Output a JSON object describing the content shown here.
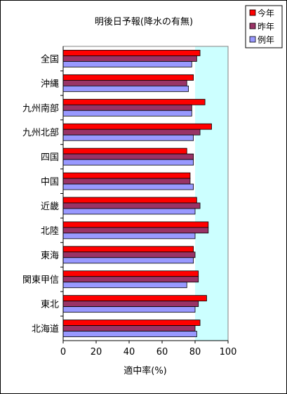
{
  "chart_data": {
    "type": "bar",
    "orientation": "horizontal",
    "title": "明後日予報(降水の有無)",
    "xlabel": "適中率(%)",
    "ylabel": "",
    "xlim": [
      0,
      100
    ],
    "xticks": [
      0,
      20,
      40,
      60,
      80,
      100
    ],
    "grid": false,
    "legend_position": "top-right",
    "categories": [
      "全国",
      "沖縄",
      "九州南部",
      "九州北部",
      "四国",
      "中国",
      "近畿",
      "北陸",
      "東海",
      "関東甲信",
      "東北",
      "北海道"
    ],
    "series": [
      {
        "name": "今年",
        "color": "#ff0000",
        "values": [
          83,
          79,
          86,
          90,
          75,
          77,
          81,
          88,
          79,
          82,
          87,
          83
        ]
      },
      {
        "name": "昨年",
        "color": "#993366",
        "values": [
          81,
          75,
          78,
          83,
          79,
          77,
          83,
          88,
          80,
          82,
          82,
          80
        ]
      },
      {
        "name": "例年",
        "color": "#9999ff",
        "values": [
          78,
          76,
          78,
          79,
          79,
          79,
          80,
          80,
          79,
          75,
          80,
          81
        ]
      }
    ],
    "plot_background": "#ccffff",
    "plot_background_xrange": [
      80,
      100
    ]
  }
}
